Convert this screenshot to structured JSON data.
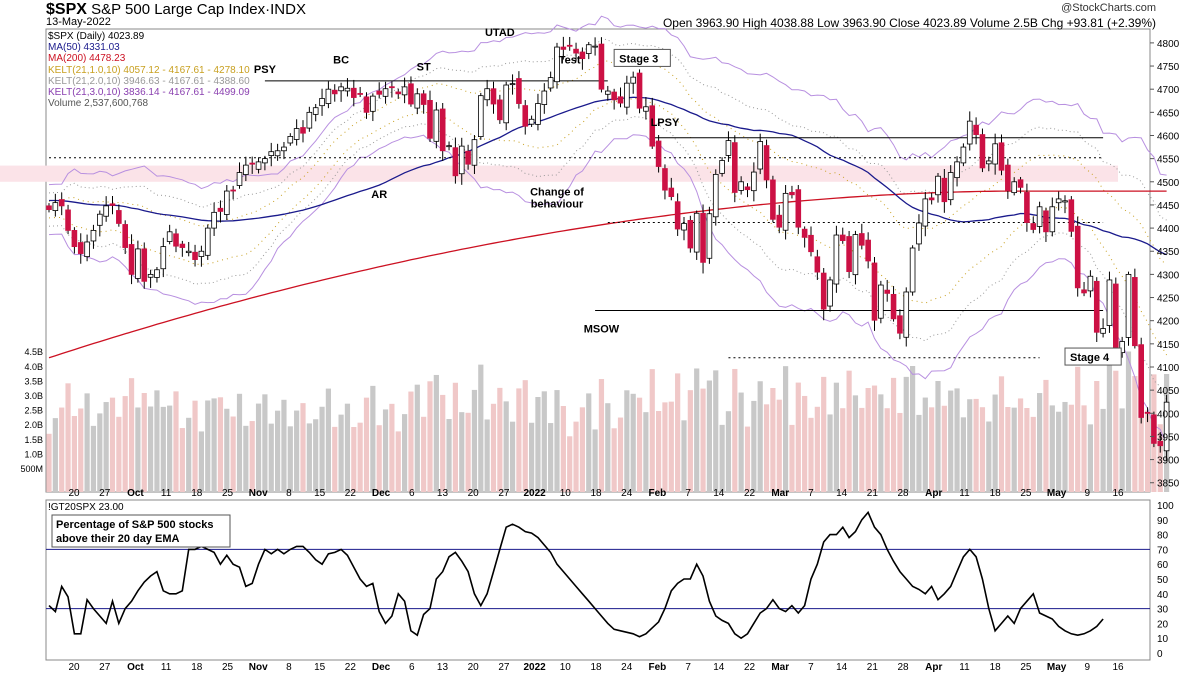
{
  "header": {
    "symbol": "$SPX",
    "name": "S&P 500 Large Cap Index·INDX",
    "date": "13-May-2022",
    "ohlc_text": "Open 3963.90  High 4038.88  Low 3963.90  Close 4023.89  Volume 2.5B  Chg +93.81 (+2.39%)",
    "logo": "@StockCharts.com"
  },
  "legend": [
    {
      "text": "$SPX (Daily) 4023.89",
      "color": "#000000"
    },
    {
      "text": "MA(50) 4331.03",
      "color": "#1a1a8c"
    },
    {
      "text": "MA(200) 4478.23",
      "color": "#cc1122"
    },
    {
      "text": "KELT(21,1.0,10) 4057.12 - 4167.61 - 4278.10",
      "color": "#c8a020"
    },
    {
      "text": "KELT(21,2.0,10) 3946.63 - 4167.61 - 4388.60",
      "color": "#999999"
    },
    {
      "text": "KELT(21,3.0,10) 3836.14 - 4167.61 - 4499.09",
      "color": "#8a40b0"
    },
    {
      "text": "Volume 2,537,600,768",
      "color": "#555555"
    }
  ],
  "lower": {
    "symbol_text": "!GT20SPX 23.00",
    "note_line1": "Percentage of S&P 500 stocks",
    "note_line2": "above their 20 day EMA"
  },
  "colors": {
    "up": "#ffffff",
    "down": "#cc1144",
    "ma50": "#1a1a8c",
    "ma200": "#cc1122",
    "kelt1": "#c8a020",
    "kelt2": "#999999",
    "kelt3": "#b890e0",
    "vol_up": "#c8c8c8",
    "vol_down": "#f0c8c8",
    "zone": "#fbe3e8"
  },
  "chart_data": [
    {
      "type": "candlestick",
      "title": "$SPX S&P 500 Large Cap Index·INDX",
      "ylim": [
        3830,
        4830
      ],
      "y_ticks": [
        3850,
        3900,
        3950,
        4000,
        4050,
        4100,
        4150,
        4200,
        4250,
        4300,
        4350,
        4400,
        4450,
        4500,
        4550,
        4600,
        4650,
        4700,
        4750,
        4800
      ],
      "x_ticks": [
        "20",
        "27",
        "Oct",
        "11",
        "18",
        "25",
        "Nov",
        "8",
        "15",
        "22",
        "Dec",
        "6",
        "13",
        "20",
        "27",
        "2022",
        "10",
        "18",
        "24",
        "Feb",
        "7",
        "14",
        "22",
        "Mar",
        "7",
        "14",
        "21",
        "28",
        "Apr",
        "11",
        "18",
        "25",
        "May",
        "9",
        "16"
      ],
      "volume_ticks": [
        "500M",
        "1.0B",
        "1.5B",
        "2.0B",
        "2.5B",
        "3.0B",
        "3.5B",
        "4.0B",
        "4.5B"
      ],
      "close": [
        4440,
        4455,
        4448,
        4395,
        4360,
        4345,
        4370,
        4395,
        4430,
        4448,
        4449,
        4410,
        4358,
        4300,
        4355,
        4285,
        4300,
        4310,
        4360,
        4392,
        4361,
        4358,
        4350,
        4332,
        4350,
        4400,
        4434,
        4436,
        4480,
        4481,
        4520,
        4536,
        4538,
        4543,
        4550,
        4565,
        4567,
        4575,
        4598,
        4615,
        4605,
        4650,
        4660,
        4680,
        4700,
        4690,
        4705,
        4702,
        4682,
        4690,
        4650,
        4685,
        4689,
        4701,
        4705,
        4690,
        4705,
        4668,
        4690,
        4667,
        4594,
        4655,
        4567,
        4578,
        4513,
        4577,
        4538,
        4591,
        4686,
        4701,
        4668,
        4634,
        4709,
        4712,
        4669,
        4620,
        4635,
        4669,
        4696,
        4725,
        4791,
        4786,
        4793,
        4778,
        4766,
        4796,
        4793,
        4700,
        4696,
        4677,
        4670,
        4713,
        4726,
        4659,
        4662,
        4577,
        4533,
        4482,
        4468,
        4398,
        4410,
        4357,
        4432,
        4326,
        4431,
        4516,
        4546,
        4589,
        4477,
        4500,
        4483,
        4521,
        4587,
        4504,
        4419,
        4402,
        4475,
        4472,
        4402,
        4380,
        4349,
        4305,
        4225,
        4288,
        4385,
        4373,
        4306,
        4386,
        4363,
        4329,
        4201,
        4277,
        4259,
        4204,
        4173,
        4262,
        4357,
        4411,
        4463,
        4461,
        4512,
        4457,
        4520,
        4543,
        4575,
        4631,
        4602,
        4530,
        4545,
        4582,
        4525,
        4481,
        4500,
        4488,
        4412,
        4397,
        4446,
        4392,
        4446,
        4463,
        4459,
        4393,
        4271,
        4260,
        4296,
        4175,
        4183,
        4288,
        4131,
        4155,
        4300,
        4146,
        3991,
        4001,
        3935,
        3930,
        4024
      ],
      "kelt_mid_last": 4167.61,
      "annotations": [
        {
          "text": "PSY",
          "x_index": 34,
          "price": 4735
        },
        {
          "text": "BC",
          "x_index": 46,
          "price": 4755
        },
        {
          "text": "ST",
          "x_index": 59,
          "price": 4740
        },
        {
          "text": "UTAD",
          "x_index": 71,
          "price": 4815
        },
        {
          "text": "Test",
          "x_index": 82,
          "price": 4755
        },
        {
          "text": "AR",
          "x_index": 52,
          "price": 4465
        },
        {
          "text": "Change of",
          "x_index": 80,
          "price": 4470
        },
        {
          "text": "behaviour",
          "x_index": 80,
          "price": 4445
        },
        {
          "text": "MSOW",
          "x_index": 87,
          "price": 4175
        },
        {
          "text": "LPSY",
          "x_index": 97,
          "price": 4620
        }
      ],
      "boxed_labels": [
        {
          "text": "Stage 3",
          "x_index": 89,
          "price": 4760
        },
        {
          "text": "Stage 4",
          "x_index": 160,
          "price": 4115
        }
      ],
      "horizontal_levels": [
        {
          "price": 4718,
          "style": "solid",
          "from_index": 34,
          "to_index": 88
        },
        {
          "price": 4595,
          "style": "solid",
          "from_index": 95,
          "to_index": 166
        },
        {
          "price": 4222,
          "style": "solid",
          "from_index": 86,
          "to_index": 166
        },
        {
          "price": 4552,
          "style": "dotted",
          "from_index": 0,
          "to_index": 166
        },
        {
          "price": 4412,
          "style": "dotted",
          "from_index": 88,
          "to_index": 166
        },
        {
          "price": 4120,
          "style": "dotted",
          "from_index": 107,
          "to_index": 156
        }
      ],
      "resistance_zone": [
        4500,
        4535
      ]
    },
    {
      "type": "line",
      "title": "!GT20SPX 23.00",
      "ylim": [
        0,
        100
      ],
      "y_ticks": [
        0,
        10,
        20,
        30,
        40,
        50,
        60,
        70,
        80,
        90,
        100
      ],
      "reference_lines": [
        70,
        30
      ],
      "values": [
        32,
        28,
        45,
        38,
        13,
        13,
        36,
        30,
        25,
        20,
        35,
        20,
        30,
        35,
        42,
        48,
        52,
        55,
        42,
        40,
        40,
        42,
        70,
        70,
        72,
        70,
        68,
        60,
        66,
        60,
        58,
        45,
        47,
        60,
        70,
        67,
        70,
        67,
        70,
        72,
        72,
        68,
        63,
        60,
        67,
        68,
        70,
        66,
        58,
        50,
        45,
        47,
        28,
        20,
        25,
        40,
        35,
        15,
        12,
        26,
        30,
        50,
        55,
        65,
        68,
        62,
        55,
        40,
        32,
        40,
        55,
        70,
        85,
        87,
        85,
        82,
        81,
        78,
        73,
        68,
        60,
        55,
        50,
        45,
        40,
        35,
        30,
        25,
        20,
        16,
        15,
        14,
        13,
        11,
        13,
        17,
        21,
        30,
        42,
        47,
        50,
        50,
        60,
        52,
        35,
        25,
        22,
        20,
        13,
        10,
        13,
        20,
        27,
        30,
        36,
        30,
        28,
        32,
        27,
        32,
        50,
        60,
        75,
        80,
        80,
        85,
        78,
        82,
        90,
        95,
        85,
        80,
        70,
        62,
        55,
        50,
        45,
        43,
        40,
        45,
        36,
        40,
        45,
        55,
        65,
        70,
        65,
        50,
        30,
        15,
        20,
        25,
        20,
        30,
        35,
        40,
        27,
        25,
        23,
        18,
        15,
        13,
        12,
        13,
        15,
        18,
        23
      ]
    }
  ]
}
